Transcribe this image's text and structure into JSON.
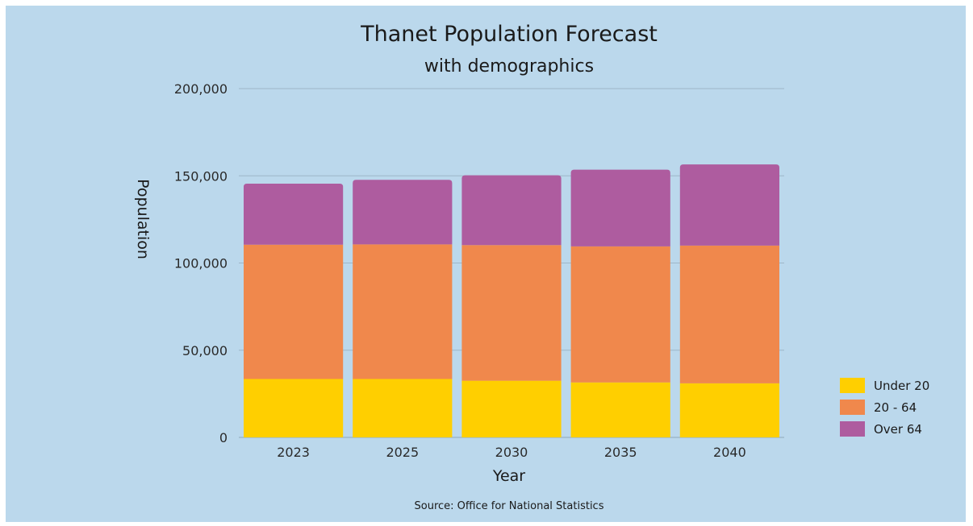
{
  "chart_data": {
    "type": "bar",
    "stacked": true,
    "title": "Thanet Population Forecast",
    "subtitle": "with demographics",
    "xlabel": "Year",
    "ylabel": "Population",
    "source": "Source: Office for National Statistics",
    "ylim": [
      0,
      200000
    ],
    "yticks": [
      0,
      50000,
      100000,
      150000,
      200000
    ],
    "ytick_labels": [
      "0",
      "50,000",
      "100,000",
      "150,000",
      "200,000"
    ],
    "categories": [
      "2023",
      "2025",
      "2030",
      "2035",
      "2040"
    ],
    "legend_position": "right",
    "grid": true,
    "series": [
      {
        "name": "Under 20",
        "color": "#ffcf00",
        "values": [
          33500,
          33500,
          32500,
          31500,
          31000
        ]
      },
      {
        "name": "20 - 64",
        "color": "#f0884c",
        "values": [
          77000,
          77200,
          77800,
          78000,
          79000
        ]
      },
      {
        "name": "Over 64",
        "color": "#ae5c9f",
        "values": [
          35000,
          37000,
          40000,
          44000,
          46500
        ]
      }
    ]
  }
}
